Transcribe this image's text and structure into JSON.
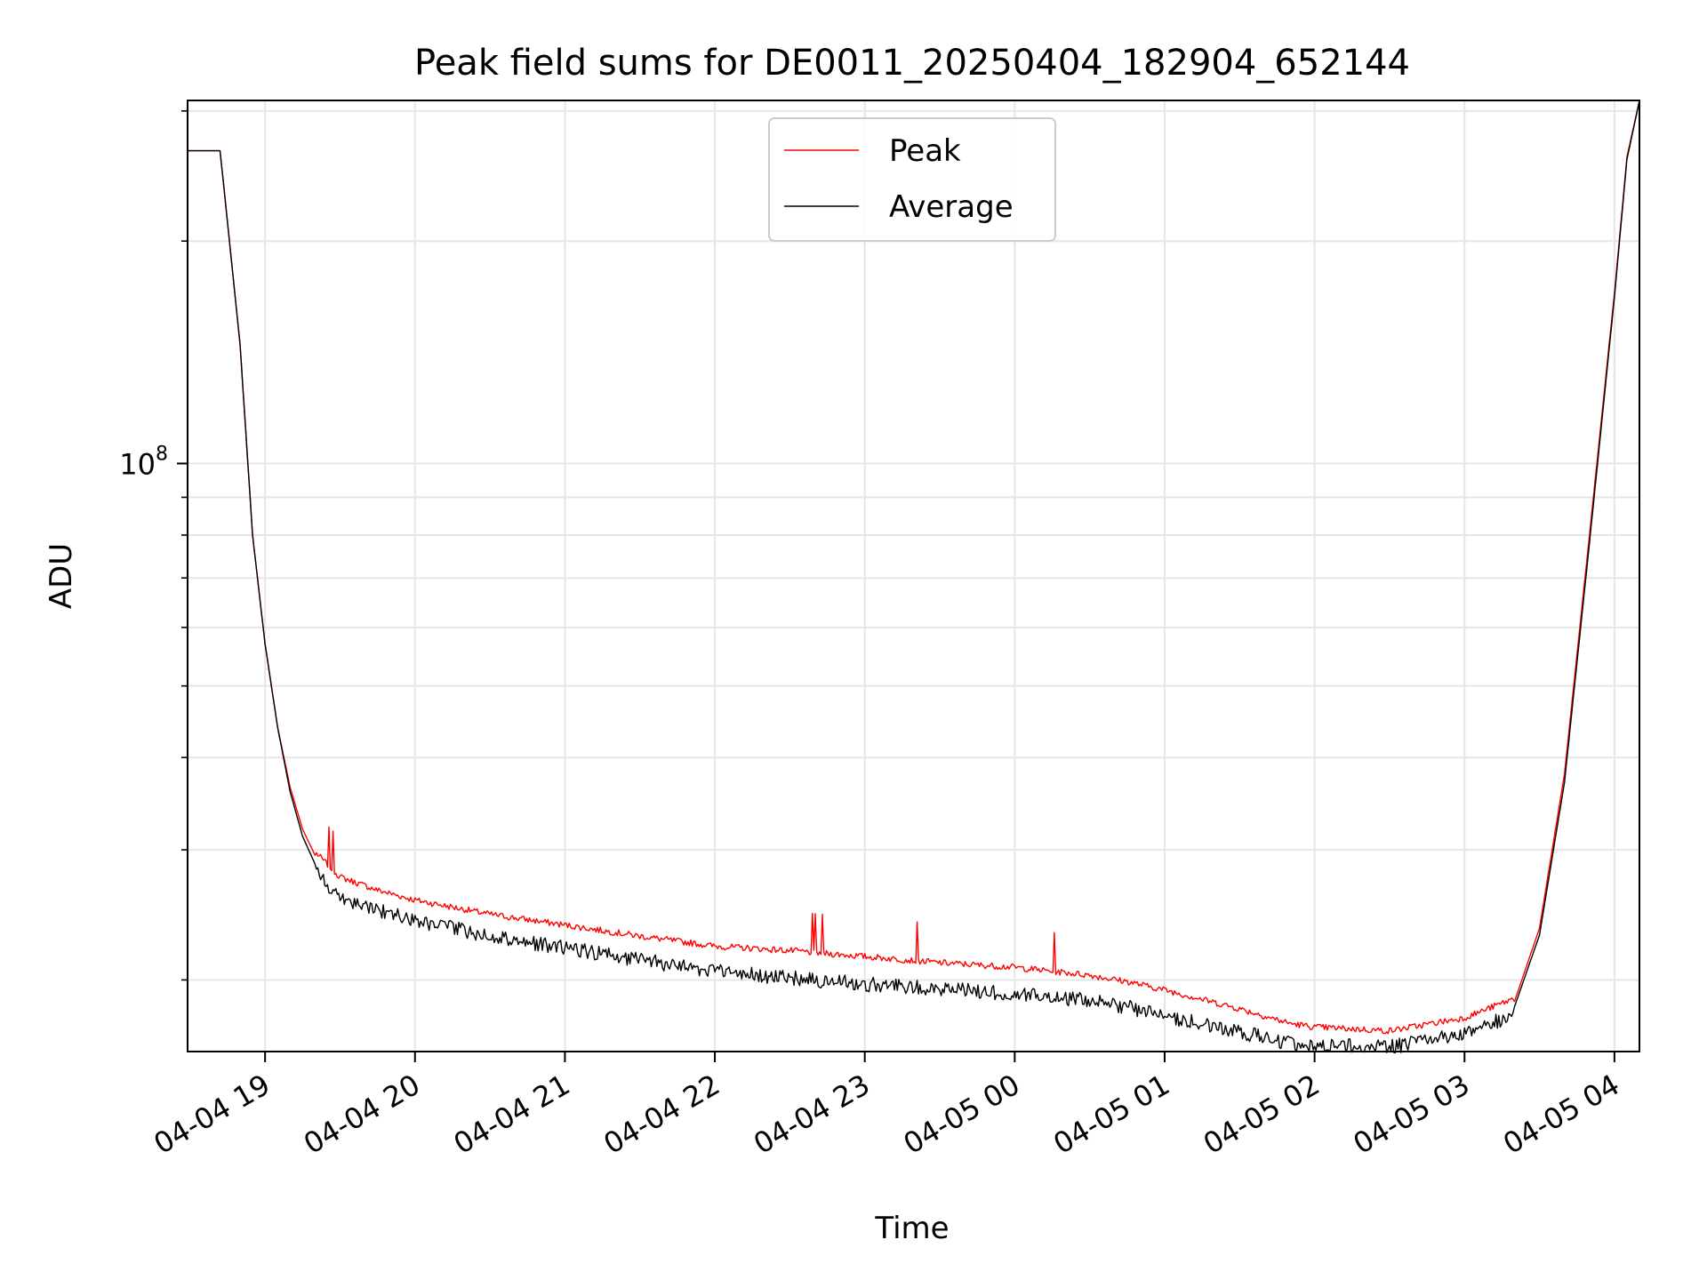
{
  "chart_data": {
    "type": "line",
    "title": "Peak field sums for DE0011_20250404_182904_652144",
    "xlabel": "Time",
    "ylabel": "ADU",
    "yscale": "log",
    "ylim": [
      16000000,
      310000000
    ],
    "xlim": [
      "2025-04-04 18:29",
      "2025-04-05 04:10"
    ],
    "x_ticks": [
      "04-04 19",
      "04-04 20",
      "04-04 21",
      "04-04 22",
      "04-04 23",
      "04-05 00",
      "04-05 01",
      "04-05 02",
      "04-05 03",
      "04-05 04"
    ],
    "y_ticks": [
      {
        "value": 100000000,
        "label": "10^8"
      }
    ],
    "grid": true,
    "legend_position": "top-center",
    "series": [
      {
        "name": "Peak",
        "color": "#ff0000",
        "points": [
          [
            "2025-04-04 18:29",
            265000000
          ],
          [
            "2025-04-04 18:42",
            265000000
          ],
          [
            "2025-04-04 18:50",
            145000000
          ],
          [
            "2025-04-04 18:55",
            80000000
          ],
          [
            "2025-04-04 19:00",
            57000000
          ],
          [
            "2025-04-04 19:05",
            44000000
          ],
          [
            "2025-04-04 19:10",
            36500000
          ],
          [
            "2025-04-04 19:15",
            32000000
          ],
          [
            "2025-04-04 19:20",
            29500000
          ],
          [
            "2025-04-04 19:30",
            27300000
          ],
          [
            "2025-04-04 19:45",
            26200000
          ],
          [
            "2025-04-04 20:00",
            25400000
          ],
          [
            "2025-04-04 20:30",
            24300000
          ],
          [
            "2025-04-04 21:00",
            23500000
          ],
          [
            "2025-04-04 21:30",
            22700000
          ],
          [
            "2025-04-04 22:00",
            22000000
          ],
          [
            "2025-04-04 22:30",
            21700000
          ],
          [
            "2025-04-04 23:00",
            21300000
          ],
          [
            "2025-04-04 23:30",
            20900000
          ],
          [
            "2025-04-05 00:00",
            20600000
          ],
          [
            "2025-04-05 00:30",
            20100000
          ],
          [
            "2025-04-05 00:45",
            19700000
          ],
          [
            "2025-04-05 01:00",
            19200000
          ],
          [
            "2025-04-05 01:30",
            18100000
          ],
          [
            "2025-04-05 01:50",
            17300000
          ],
          [
            "2025-04-05 02:00",
            17100000
          ],
          [
            "2025-04-05 02:30",
            16900000
          ],
          [
            "2025-04-05 03:00",
            17600000
          ],
          [
            "2025-04-05 03:20",
            18700000
          ],
          [
            "2025-04-05 03:30",
            23500000
          ],
          [
            "2025-04-05 03:40",
            38000000
          ],
          [
            "2025-04-05 03:50",
            80000000
          ],
          [
            "2025-04-05 04:00",
            170000000
          ],
          [
            "2025-04-05 04:05",
            260000000
          ],
          [
            "2025-04-05 04:10",
            310000000
          ]
        ]
      },
      {
        "name": "Average",
        "color": "#000000",
        "points": [
          [
            "2025-04-04 18:29",
            265000000
          ],
          [
            "2025-04-04 18:42",
            265000000
          ],
          [
            "2025-04-04 18:50",
            145000000
          ],
          [
            "2025-04-04 18:55",
            80000000
          ],
          [
            "2025-04-04 19:00",
            57000000
          ],
          [
            "2025-04-04 19:05",
            44000000
          ],
          [
            "2025-04-04 19:10",
            36000000
          ],
          [
            "2025-04-04 19:15",
            31300000
          ],
          [
            "2025-04-04 19:20",
            28700000
          ],
          [
            "2025-04-04 19:30",
            26500000
          ],
          [
            "2025-04-04 19:45",
            25500000
          ],
          [
            "2025-04-04 20:00",
            24600000
          ],
          [
            "2025-04-04 20:30",
            23500000
          ],
          [
            "2025-04-04 21:00",
            22600000
          ],
          [
            "2025-04-04 21:30",
            21800000
          ],
          [
            "2025-04-04 22:00",
            21000000
          ],
          [
            "2025-04-04 22:30",
            20600000
          ],
          [
            "2025-04-04 23:00",
            20200000
          ],
          [
            "2025-04-04 23:30",
            19900000
          ],
          [
            "2025-04-05 00:00",
            19600000
          ],
          [
            "2025-04-05 00:30",
            19200000
          ],
          [
            "2025-04-05 00:45",
            18800000
          ],
          [
            "2025-04-05 01:00",
            18300000
          ],
          [
            "2025-04-05 01:30",
            17400000
          ],
          [
            "2025-04-05 01:50",
            16800000
          ],
          [
            "2025-04-05 02:00",
            16700000
          ],
          [
            "2025-04-05 02:30",
            16600000
          ],
          [
            "2025-04-05 03:00",
            17300000
          ],
          [
            "2025-04-05 03:20",
            18400000
          ],
          [
            "2025-04-05 03:30",
            23000000
          ],
          [
            "2025-04-05 03:40",
            37000000
          ],
          [
            "2025-04-05 03:50",
            78000000
          ],
          [
            "2025-04-05 04:00",
            168000000
          ],
          [
            "2025-04-05 04:05",
            258000000
          ],
          [
            "2025-04-05 04:10",
            310000000
          ]
        ]
      }
    ]
  }
}
